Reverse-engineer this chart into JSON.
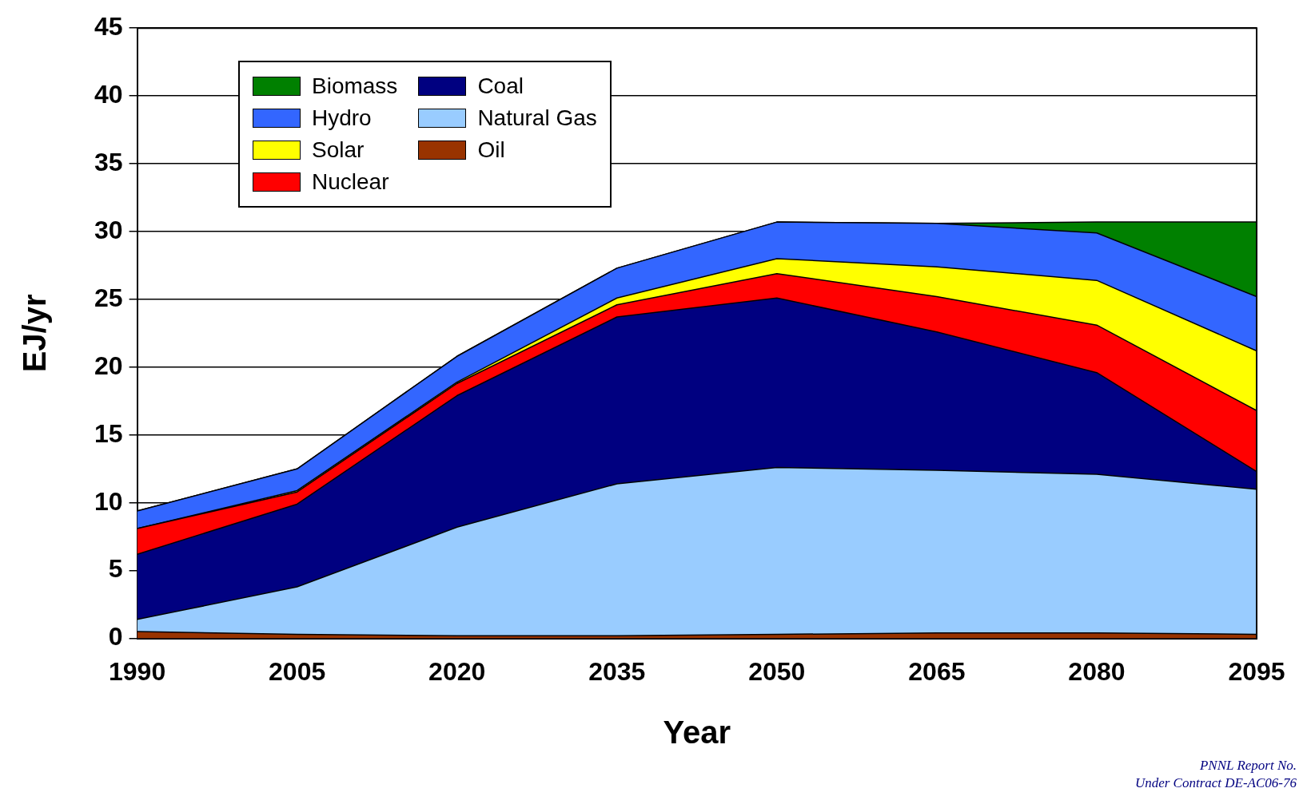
{
  "chart_data": {
    "type": "area",
    "stacked": true,
    "xlabel": "Year",
    "ylabel": "EJ/yr",
    "categories": [
      "1990",
      "2005",
      "2020",
      "2035",
      "2050",
      "2065",
      "2080",
      "2095"
    ],
    "series": [
      {
        "name": "Oil",
        "color": "#993300",
        "values": [
          0.5,
          0.3,
          0.2,
          0.2,
          0.3,
          0.4,
          0.4,
          0.3
        ]
      },
      {
        "name": "Natural Gas",
        "color": "#99ccff",
        "values": [
          0.9,
          3.5,
          8.0,
          11.2,
          12.3,
          12.0,
          11.7,
          10.7
        ]
      },
      {
        "name": "Coal",
        "color": "#000080",
        "values": [
          4.8,
          6.1,
          9.7,
          12.3,
          12.5,
          10.2,
          7.5,
          1.3
        ]
      },
      {
        "name": "Nuclear",
        "color": "#ff0000",
        "values": [
          1.9,
          0.9,
          0.9,
          0.9,
          1.8,
          2.6,
          3.5,
          4.5
        ]
      },
      {
        "name": "Solar",
        "color": "#ffff00",
        "values": [
          0,
          0.1,
          0.1,
          0.5,
          1.1,
          2.2,
          3.3,
          4.4
        ]
      },
      {
        "name": "Hydro",
        "color": "#3366ff",
        "values": [
          1.3,
          1.6,
          1.9,
          2.2,
          2.7,
          3.2,
          3.5,
          4.0
        ]
      },
      {
        "name": "Biomass",
        "color": "#008000",
        "values": [
          0,
          0,
          0,
          0,
          0,
          0,
          0.8,
          5.5
        ]
      }
    ],
    "ylim": [
      0,
      45
    ],
    "yticks": [
      0,
      5,
      10,
      15,
      20,
      25,
      30,
      35,
      40,
      45
    ],
    "grid": "y",
    "legend": "top left",
    "annotations": [
      "PNNL Report No.",
      "Under Contract DE-AC06-76"
    ]
  }
}
